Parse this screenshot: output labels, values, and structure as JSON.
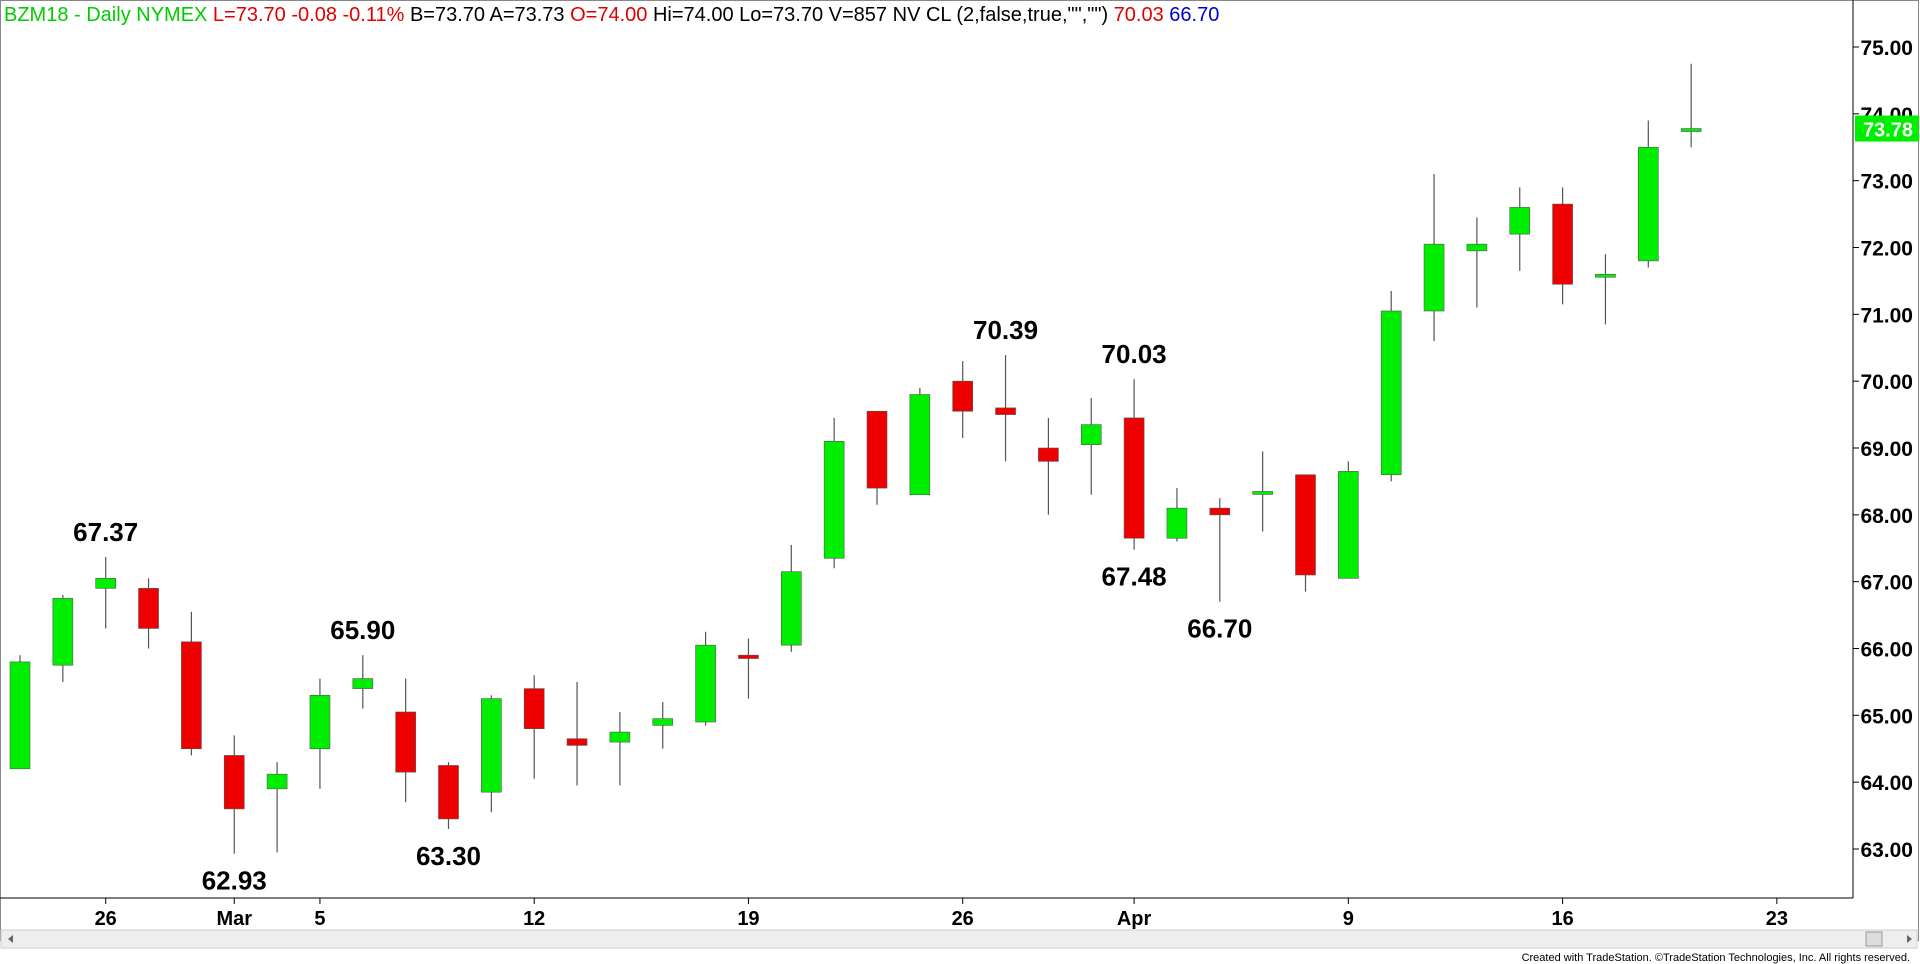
{
  "header": {
    "segments": [
      {
        "text": "BZM18 - Daily  NYMEX",
        "color": "#00cc00"
      },
      {
        "text": "L=73.70",
        "color": "#e00000"
      },
      {
        "text": "-0.08",
        "color": "#e00000"
      },
      {
        "text": "-0.11%",
        "color": "#e00000"
      },
      {
        "text": "B=73.70",
        "color": "#000000"
      },
      {
        "text": "A=73.73",
        "color": "#000000"
      },
      {
        "text": "O=74.00",
        "color": "#e00000"
      },
      {
        "text": "Hi=74.00",
        "color": "#000000"
      },
      {
        "text": "Lo=73.70",
        "color": "#000000"
      },
      {
        "text": "V=857",
        "color": "#000000"
      },
      {
        "text": "NV CL (2,false,true,\"\",\"\")",
        "color": "#000000"
      },
      {
        "text": "70.03",
        "color": "#e00000"
      },
      {
        "text": "66.70",
        "color": "#0000cc"
      }
    ]
  },
  "footer": {
    "credit": "Created with TradeStation. ©TradeStation Technologies, Inc. All rights reserved."
  },
  "colors": {
    "up": "#00ee00",
    "down": "#ee0000",
    "wick": "#555555",
    "grid": "#000000"
  },
  "chart_data": {
    "type": "candlestick",
    "symbol": "BZM18",
    "interval": "Daily",
    "exchange": "NYMEX",
    "ylim": [
      62.2,
      75.4
    ],
    "yticks": [
      63.0,
      64.0,
      65.0,
      66.0,
      67.0,
      68.0,
      69.0,
      70.0,
      71.0,
      72.0,
      73.0,
      74.0,
      75.0
    ],
    "x_tick_labels": [
      {
        "bar": 2,
        "label": "26"
      },
      {
        "bar": 5,
        "label": "Mar"
      },
      {
        "bar": 7,
        "label": "5"
      },
      {
        "bar": 12,
        "label": "12"
      },
      {
        "bar": 17,
        "label": "19"
      },
      {
        "bar": 22,
        "label": "26"
      },
      {
        "bar": 26,
        "label": "Apr"
      },
      {
        "bar": 31,
        "label": "9"
      },
      {
        "bar": 36,
        "label": "16"
      },
      {
        "bar": 41,
        "label": "23"
      }
    ],
    "candles": [
      {
        "o": 64.2,
        "h": 65.9,
        "l": 64.2,
        "c": 65.8
      },
      {
        "o": 65.75,
        "h": 66.8,
        "l": 65.5,
        "c": 66.75
      },
      {
        "o": 66.9,
        "h": 67.37,
        "l": 66.3,
        "c": 67.05
      },
      {
        "o": 66.9,
        "h": 67.05,
        "l": 66.0,
        "c": 66.3
      },
      {
        "o": 66.1,
        "h": 66.55,
        "l": 64.4,
        "c": 64.5
      },
      {
        "o": 64.4,
        "h": 64.7,
        "l": 62.93,
        "c": 63.6
      },
      {
        "o": 63.9,
        "h": 64.3,
        "l": 62.95,
        "c": 64.12
      },
      {
        "o": 64.5,
        "h": 65.55,
        "l": 63.9,
        "c": 65.3
      },
      {
        "o": 65.4,
        "h": 65.9,
        "l": 65.1,
        "c": 65.55
      },
      {
        "o": 65.05,
        "h": 65.55,
        "l": 63.7,
        "c": 64.15
      },
      {
        "o": 64.25,
        "h": 64.3,
        "l": 63.3,
        "c": 63.45
      },
      {
        "o": 63.85,
        "h": 65.3,
        "l": 63.55,
        "c": 65.25
      },
      {
        "o": 65.4,
        "h": 65.6,
        "l": 64.05,
        "c": 64.8
      },
      {
        "o": 64.65,
        "h": 65.5,
        "l": 63.95,
        "c": 64.55
      },
      {
        "o": 64.6,
        "h": 65.05,
        "l": 63.95,
        "c": 64.75
      },
      {
        "o": 64.85,
        "h": 65.2,
        "l": 64.5,
        "c": 64.95
      },
      {
        "o": 64.9,
        "h": 66.25,
        "l": 64.85,
        "c": 66.05
      },
      {
        "o": 65.9,
        "h": 66.15,
        "l": 65.25,
        "c": 65.85
      },
      {
        "o": 66.05,
        "h": 67.55,
        "l": 65.95,
        "c": 67.15
      },
      {
        "o": 67.35,
        "h": 69.45,
        "l": 67.2,
        "c": 69.1
      },
      {
        "o": 69.55,
        "h": 69.55,
        "l": 68.15,
        "c": 68.4
      },
      {
        "o": 68.3,
        "h": 69.9,
        "l": 68.3,
        "c": 69.8
      },
      {
        "o": 70.0,
        "h": 70.3,
        "l": 69.15,
        "c": 69.55
      },
      {
        "o": 69.6,
        "h": 70.39,
        "l": 68.8,
        "c": 69.5
      },
      {
        "o": 69.0,
        "h": 69.45,
        "l": 68.0,
        "c": 68.8
      },
      {
        "o": 69.05,
        "h": 69.75,
        "l": 68.3,
        "c": 69.35
      },
      {
        "o": 69.45,
        "h": 70.03,
        "l": 67.48,
        "c": 67.65
      },
      {
        "o": 67.65,
        "h": 68.4,
        "l": 67.6,
        "c": 68.1
      },
      {
        "o": 68.1,
        "h": 68.25,
        "l": 66.7,
        "c": 68.0
      },
      {
        "o": 68.35,
        "h": 68.95,
        "l": 67.75,
        "c": 68.35
      },
      {
        "o": 68.6,
        "h": 68.6,
        "l": 66.85,
        "c": 67.1
      },
      {
        "o": 67.05,
        "h": 68.8,
        "l": 67.05,
        "c": 68.65
      },
      {
        "o": 68.6,
        "h": 71.35,
        "l": 68.5,
        "c": 71.05
      },
      {
        "o": 71.05,
        "h": 73.1,
        "l": 70.6,
        "c": 72.05
      },
      {
        "o": 71.95,
        "h": 72.45,
        "l": 71.1,
        "c": 72.05
      },
      {
        "o": 72.2,
        "h": 72.9,
        "l": 71.65,
        "c": 72.6
      },
      {
        "o": 72.65,
        "h": 72.9,
        "l": 71.15,
        "c": 71.45
      },
      {
        "o": 71.6,
        "h": 71.9,
        "l": 70.85,
        "c": 71.6
      },
      {
        "o": 71.8,
        "h": 73.9,
        "l": 71.7,
        "c": 73.5
      },
      {
        "o": 73.78,
        "h": 74.75,
        "l": 73.5,
        "c": 73.78
      }
    ],
    "annotations": [
      {
        "bar": 2,
        "label": "67.37",
        "value": 67.37,
        "position": "above"
      },
      {
        "bar": 5,
        "label": "62.93",
        "value": 62.93,
        "position": "below"
      },
      {
        "bar": 8,
        "label": "65.90",
        "value": 65.9,
        "position": "above"
      },
      {
        "bar": 10,
        "label": "63.30",
        "value": 63.3,
        "position": "below"
      },
      {
        "bar": 23,
        "label": "70.39",
        "value": 70.39,
        "position": "above"
      },
      {
        "bar": 26,
        "label": "70.03",
        "value": 70.03,
        "position": "above"
      },
      {
        "bar": 26,
        "label": "67.48",
        "value": 67.48,
        "position": "below"
      },
      {
        "bar": 28,
        "label": "66.70",
        "value": 66.7,
        "position": "below"
      }
    ],
    "last_price": {
      "value": 73.78,
      "label": "73.78"
    },
    "grid": false,
    "legend": "none"
  }
}
